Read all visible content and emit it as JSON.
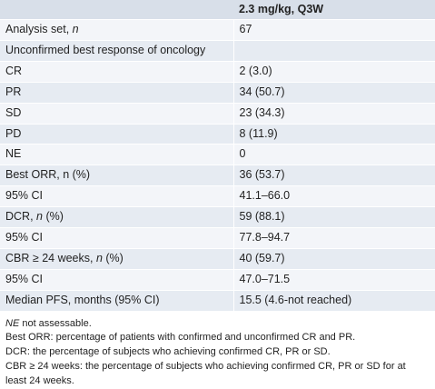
{
  "table": {
    "header": {
      "col1": "",
      "col2": "2.3 mg/kg, Q3W"
    },
    "rows": [
      {
        "label_pre": "Analysis set, ",
        "label_ital": "n",
        "label_post": "",
        "value": "67"
      },
      {
        "label_pre": "Unconfirmed best response of oncology",
        "label_ital": "",
        "label_post": "",
        "value": ""
      },
      {
        "label_pre": "CR",
        "label_ital": "",
        "label_post": "",
        "value": "2 (3.0)"
      },
      {
        "label_pre": "PR",
        "label_ital": "",
        "label_post": "",
        "value": "34 (50.7)"
      },
      {
        "label_pre": "SD",
        "label_ital": "",
        "label_post": "",
        "value": "23 (34.3)"
      },
      {
        "label_pre": "PD",
        "label_ital": "",
        "label_post": "",
        "value": "8 (11.9)"
      },
      {
        "label_pre": "NE",
        "label_ital": "",
        "label_post": "",
        "value": "0"
      },
      {
        "label_pre": "Best ORR, n (%)",
        "label_ital": "",
        "label_post": "",
        "value": "36 (53.7)"
      },
      {
        "label_pre": "95% CI",
        "label_ital": "",
        "label_post": "",
        "value": "41.1–66.0"
      },
      {
        "label_pre": "DCR, ",
        "label_ital": "n",
        "label_post": " (%)",
        "value": "59 (88.1)"
      },
      {
        "label_pre": "95% CI",
        "label_ital": "",
        "label_post": "",
        "value": "77.8–94.7"
      },
      {
        "label_pre": "CBR ≥ 24 weeks, ",
        "label_ital": "n",
        "label_post": " (%)",
        "value": "40 (59.7)"
      },
      {
        "label_pre": "95% CI",
        "label_ital": "",
        "label_post": "",
        "value": "47.0–71.5"
      },
      {
        "label_pre": "Median PFS, months (95% CI)",
        "label_ital": "",
        "label_post": "",
        "value": "15.5 (4.6-not reached)"
      }
    ]
  },
  "notes": {
    "ne_abbr": "NE",
    "ne_text": " not assessable.",
    "orr": "Best ORR: percentage of patients with confirmed and unconfirmed CR and PR.",
    "dcr": "DCR: the percentage of subjects who achieving confirmed CR, PR or SD.",
    "cbr": "CBR ≥ 24 weeks: the percentage of subjects who achieving confirmed CR, PR or SD for at least 24 weeks."
  }
}
